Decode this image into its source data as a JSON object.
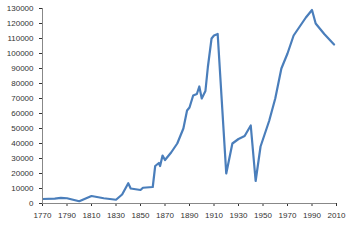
{
  "chart_data": {
    "type": "line",
    "x": [
      1770,
      1780,
      1785,
      1790,
      1800,
      1810,
      1820,
      1830,
      1835,
      1840,
      1842,
      1850,
      1852,
      1860,
      1862,
      1865,
      1866,
      1868,
      1870,
      1875,
      1880,
      1885,
      1888,
      1890,
      1893,
      1896,
      1898,
      1900,
      1903,
      1905,
      1908,
      1910,
      1913,
      1920,
      1922,
      1925,
      1930,
      1935,
      1940,
      1944,
      1948,
      1955,
      1960,
      1965,
      1970,
      1975,
      1980,
      1985,
      1990,
      1993,
      2000,
      2008
    ],
    "values": [
      3000,
      3300,
      3800,
      3500,
      1500,
      5000,
      3500,
      2500,
      6000,
      13500,
      10000,
      9000,
      10500,
      11000,
      25000,
      27000,
      25000,
      32000,
      29000,
      34000,
      40000,
      50000,
      62000,
      64000,
      72000,
      73000,
      78000,
      70000,
      75000,
      91000,
      110000,
      112000,
      113000,
      20000,
      28000,
      40000,
      43000,
      45000,
      52000,
      15000,
      38000,
      55000,
      70000,
      90000,
      100000,
      112000,
      118000,
      124000,
      129000,
      120000,
      113000,
      106000
    ],
    "color": "#4a7ebb",
    "xlim": [
      1770,
      2010
    ],
    "xticks": [
      1770,
      1790,
      1810,
      1830,
      1850,
      1870,
      1890,
      1910,
      1930,
      1950,
      1970,
      1990,
      2010
    ],
    "ylim": [
      0,
      130000
    ],
    "yticks": [
      0,
      10000,
      20000,
      30000,
      40000,
      50000,
      60000,
      70000,
      80000,
      90000,
      100000,
      110000,
      120000,
      130000
    ],
    "grid": false
  }
}
